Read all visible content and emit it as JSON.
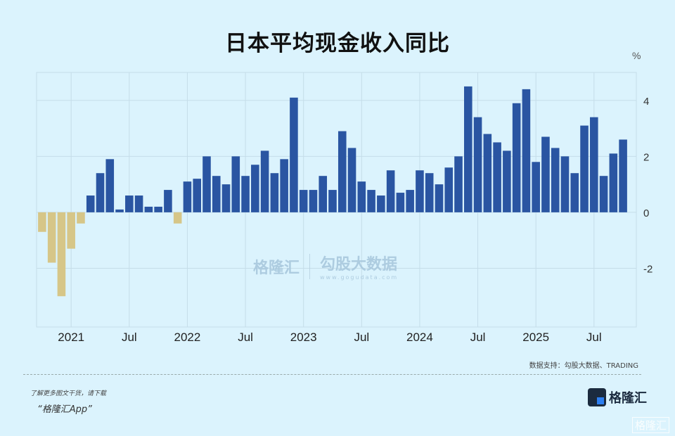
{
  "title": "日本平均现金收入同比",
  "source": "数据支持：勾股大数据、TRADING",
  "promo": {
    "line1": "了解更多图文干货，请下载",
    "line2": "“格隆汇App”"
  },
  "logo": {
    "text": "格隆汇",
    "corner_text": "格隆汇"
  },
  "watermark": {
    "brand": "格隆汇",
    "brand2": "勾股大数据",
    "url": "www.gogudata.com"
  },
  "colors": {
    "positive": "#2a55a2",
    "negative": "#d6c688",
    "background": "#dbf3fd"
  },
  "chart_data": {
    "type": "bar",
    "title": "日本平均现金收入同比",
    "ylabel": "%",
    "ylim": [
      -4.1,
      5
    ],
    "yticks": [
      -2,
      0,
      2,
      4
    ],
    "grid": true,
    "x_tick_labels": [
      {
        "month": "2021-01",
        "label": "2021"
      },
      {
        "month": "2021-07",
        "label": "Jul"
      },
      {
        "month": "2022-01",
        "label": "2022"
      },
      {
        "month": "2022-07",
        "label": "Jul"
      },
      {
        "month": "2023-01",
        "label": "2023"
      },
      {
        "month": "2023-07",
        "label": "Jul"
      },
      {
        "month": "2024-01",
        "label": "2024"
      },
      {
        "month": "2024-07",
        "label": "Jul"
      },
      {
        "month": "2025-01",
        "label": "2025"
      },
      {
        "month": "2025-07",
        "label": "Jul"
      }
    ],
    "categories": [
      "2020-10",
      "2020-11",
      "2020-12",
      "2021-01",
      "2021-02",
      "2021-03",
      "2021-04",
      "2021-05",
      "2021-06",
      "2021-07",
      "2021-08",
      "2021-09",
      "2021-10",
      "2021-11",
      "2021-12",
      "2022-01",
      "2022-02",
      "2022-03",
      "2022-04",
      "2022-05",
      "2022-06",
      "2022-07",
      "2022-08",
      "2022-09",
      "2022-10",
      "2022-11",
      "2022-12",
      "2023-01",
      "2023-02",
      "2023-03",
      "2023-04",
      "2023-05",
      "2023-06",
      "2023-07",
      "2023-08",
      "2023-09",
      "2023-10",
      "2023-11",
      "2023-12",
      "2024-01",
      "2024-02",
      "2024-03",
      "2024-04",
      "2024-05",
      "2024-06",
      "2024-07",
      "2024-08",
      "2024-09",
      "2024-10",
      "2024-11",
      "2024-12",
      "2025-01",
      "2025-02",
      "2025-03",
      "2025-04",
      "2025-05",
      "2025-06",
      "2025-07",
      "2025-08",
      "2025-09",
      "2025-10"
    ],
    "values": [
      -0.7,
      -1.8,
      -3.0,
      -1.3,
      -0.4,
      0.6,
      1.4,
      1.9,
      0.1,
      0.6,
      0.6,
      0.2,
      0.2,
      0.8,
      -0.4,
      1.1,
      1.2,
      2.0,
      1.3,
      1.0,
      2.0,
      1.3,
      1.7,
      2.2,
      1.4,
      1.9,
      4.1,
      0.8,
      0.8,
      1.3,
      0.8,
      2.9,
      2.3,
      1.1,
      0.8,
      0.6,
      1.5,
      0.7,
      0.8,
      1.5,
      1.4,
      1.0,
      1.6,
      2.0,
      4.5,
      3.4,
      2.8,
      2.5,
      2.2,
      3.9,
      4.4,
      1.8,
      2.7,
      2.3,
      2.0,
      1.4,
      3.1,
      3.4,
      1.3,
      2.1,
      2.6
    ]
  }
}
